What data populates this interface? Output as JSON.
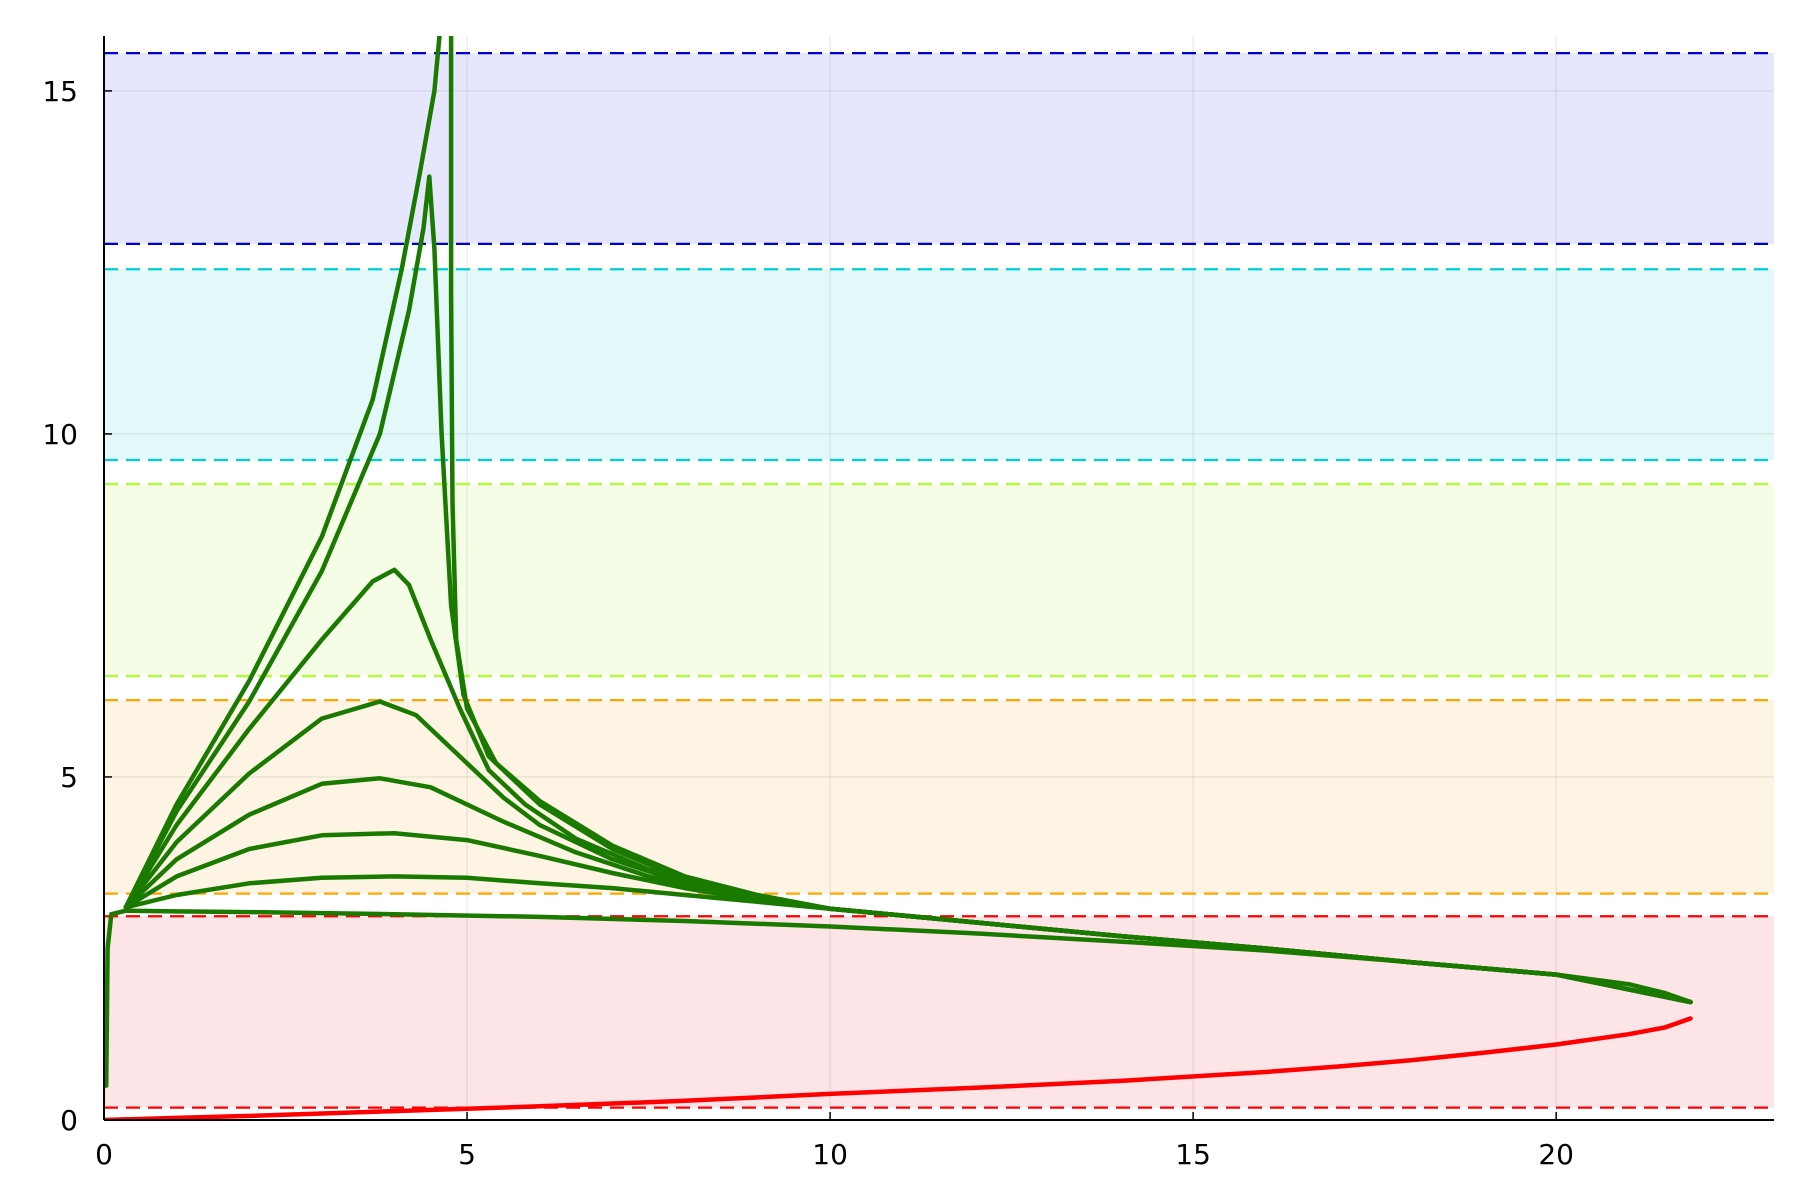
{
  "chart_data": {
    "type": "line",
    "title": "",
    "xlabel": "",
    "ylabel": "",
    "xlim": [
      0,
      23
    ],
    "ylim": [
      0,
      15.8
    ],
    "grid": true,
    "legend": "none",
    "x_ticks": [
      {
        "value": 0,
        "label": "0"
      },
      {
        "value": 5,
        "label": "5"
      },
      {
        "value": 10,
        "label": "10"
      },
      {
        "value": 15,
        "label": "15"
      },
      {
        "value": 20,
        "label": "20"
      }
    ],
    "y_ticks": [
      {
        "value": 0,
        "label": "0"
      },
      {
        "value": 5,
        "label": "5"
      },
      {
        "value": 10,
        "label": "10"
      },
      {
        "value": 15,
        "label": "15"
      }
    ],
    "bands": [
      {
        "y0": 0.18,
        "y1": 2.97,
        "fill": "#fde4e6",
        "line": "#ff0000"
      },
      {
        "y0": 3.3,
        "y1": 6.12,
        "fill": "#fdf4e4",
        "line": "#ffa500"
      },
      {
        "y0": 6.47,
        "y1": 9.27,
        "fill": "#f5fde7",
        "line": "#adff2f"
      },
      {
        "y0": 9.62,
        "y1": 12.4,
        "fill": "#e3f8f8",
        "line": "#00ced1"
      },
      {
        "y0": 12.77,
        "y1": 15.55,
        "fill": "#e6e6fe",
        "line": "#0000cd"
      }
    ],
    "series": [
      {
        "color": "#ff0000",
        "points": [
          [
            0,
            0
          ],
          [
            1,
            0.03
          ],
          [
            2,
            0.06
          ],
          [
            4,
            0.13
          ],
          [
            6,
            0.2
          ],
          [
            8,
            0.28
          ],
          [
            10,
            0.38
          ],
          [
            12,
            0.47
          ],
          [
            14,
            0.57
          ],
          [
            16,
            0.7
          ],
          [
            17,
            0.78
          ],
          [
            18,
            0.87
          ],
          [
            19,
            0.98
          ],
          [
            20,
            1.1
          ],
          [
            21,
            1.25
          ],
          [
            21.5,
            1.35
          ],
          [
            21.85,
            1.48
          ]
        ]
      },
      {
        "color": "#1a7a00",
        "points": [
          [
            21.85,
            1.72
          ],
          [
            21.5,
            1.85
          ],
          [
            21,
            1.98
          ],
          [
            20,
            2.12
          ],
          [
            18,
            2.3
          ],
          [
            16,
            2.47
          ],
          [
            14,
            2.6
          ],
          [
            12,
            2.72
          ],
          [
            10,
            2.82
          ],
          [
            8,
            2.9
          ],
          [
            6,
            2.96
          ],
          [
            4,
            3.0
          ],
          [
            2,
            3.03
          ],
          [
            1,
            3.04
          ],
          [
            0.3,
            3.05
          ],
          [
            0.1,
            3.0
          ],
          [
            0.05,
            2.5
          ],
          [
            0.03,
            0.5
          ]
        ]
      },
      {
        "color": "#1a7a00",
        "points": [
          [
            0.3,
            3.1
          ],
          [
            1,
            3.28
          ],
          [
            2,
            3.45
          ],
          [
            3,
            3.53
          ],
          [
            4,
            3.55
          ],
          [
            5,
            3.53
          ],
          [
            6,
            3.45
          ],
          [
            7,
            3.38
          ],
          [
            8,
            3.28
          ],
          [
            9,
            3.18
          ],
          [
            10,
            3.08
          ],
          [
            12,
            2.88
          ],
          [
            14,
            2.68
          ],
          [
            16,
            2.5
          ],
          [
            18,
            2.3
          ],
          [
            20,
            2.12
          ],
          [
            21.85,
            1.72
          ]
        ]
      },
      {
        "color": "#1a7a00",
        "points": [
          [
            0.3,
            3.1
          ],
          [
            1,
            3.55
          ],
          [
            2,
            3.95
          ],
          [
            3,
            4.15
          ],
          [
            4,
            4.18
          ],
          [
            5,
            4.08
          ],
          [
            6,
            3.85
          ],
          [
            7,
            3.6
          ],
          [
            8,
            3.38
          ],
          [
            9,
            3.2
          ],
          [
            10,
            3.08
          ],
          [
            12,
            2.88
          ],
          [
            14,
            2.68
          ],
          [
            16,
            2.5
          ],
          [
            18,
            2.3
          ],
          [
            20,
            2.12
          ],
          [
            21.85,
            1.72
          ]
        ]
      },
      {
        "color": "#1a7a00",
        "points": [
          [
            0.3,
            3.1
          ],
          [
            1,
            3.8
          ],
          [
            2,
            4.45
          ],
          [
            3,
            4.9
          ],
          [
            3.8,
            4.98
          ],
          [
            4.5,
            4.85
          ],
          [
            5.5,
            4.35
          ],
          [
            6.5,
            3.9
          ],
          [
            7.5,
            3.55
          ],
          [
            8.5,
            3.3
          ],
          [
            10,
            3.08
          ],
          [
            12,
            2.88
          ],
          [
            14,
            2.68
          ],
          [
            16,
            2.5
          ],
          [
            18,
            2.3
          ],
          [
            20,
            2.12
          ],
          [
            21.85,
            1.72
          ]
        ]
      },
      {
        "color": "#1a7a00",
        "points": [
          [
            0.3,
            3.1
          ],
          [
            1,
            4.05
          ],
          [
            2,
            5.05
          ],
          [
            3,
            5.85
          ],
          [
            3.8,
            6.1
          ],
          [
            4.3,
            5.9
          ],
          [
            5,
            5.2
          ],
          [
            5.5,
            4.7
          ],
          [
            6,
            4.3
          ],
          [
            7,
            3.8
          ],
          [
            8,
            3.45
          ],
          [
            9,
            3.22
          ],
          [
            10,
            3.08
          ],
          [
            12,
            2.88
          ],
          [
            14,
            2.68
          ],
          [
            16,
            2.5
          ],
          [
            18,
            2.3
          ],
          [
            20,
            2.12
          ],
          [
            21.85,
            1.72
          ]
        ]
      },
      {
        "color": "#1a7a00",
        "points": [
          [
            0.3,
            3.1
          ],
          [
            1,
            4.3
          ],
          [
            2,
            5.7
          ],
          [
            3,
            7.0
          ],
          [
            3.7,
            7.85
          ],
          [
            4.0,
            8.02
          ],
          [
            4.2,
            7.8
          ],
          [
            4.5,
            7.0
          ],
          [
            4.9,
            6.0
          ],
          [
            5.3,
            5.1
          ],
          [
            5.8,
            4.6
          ],
          [
            6.5,
            4.1
          ],
          [
            7.5,
            3.65
          ],
          [
            8.5,
            3.35
          ],
          [
            10,
            3.08
          ],
          [
            12,
            2.88
          ],
          [
            14,
            2.68
          ],
          [
            16,
            2.5
          ],
          [
            18,
            2.3
          ],
          [
            20,
            2.12
          ],
          [
            21.85,
            1.72
          ]
        ]
      },
      {
        "color": "#1a7a00",
        "points": [
          [
            0.3,
            3.1
          ],
          [
            1,
            4.5
          ],
          [
            2,
            6.1
          ],
          [
            3,
            8.0
          ],
          [
            3.8,
            10.0
          ],
          [
            4.2,
            11.8
          ],
          [
            4.4,
            13.0
          ],
          [
            4.48,
            13.75
          ],
          [
            4.55,
            12.7
          ],
          [
            4.65,
            10.0
          ],
          [
            4.78,
            7.5
          ],
          [
            4.95,
            6.2
          ],
          [
            5.3,
            5.3
          ],
          [
            6,
            4.6
          ],
          [
            7,
            3.95
          ],
          [
            8,
            3.5
          ],
          [
            9,
            3.25
          ],
          [
            10,
            3.08
          ],
          [
            12,
            2.88
          ],
          [
            14,
            2.68
          ],
          [
            16,
            2.5
          ],
          [
            18,
            2.3
          ],
          [
            20,
            2.12
          ],
          [
            21.85,
            1.72
          ]
        ]
      },
      {
        "color": "#1a7a00",
        "points": [
          [
            0.3,
            3.1
          ],
          [
            1,
            4.6
          ],
          [
            2,
            6.4
          ],
          [
            3,
            8.5
          ],
          [
            3.7,
            10.5
          ],
          [
            4.1,
            12.4
          ],
          [
            4.35,
            13.8
          ],
          [
            4.55,
            15.0
          ],
          [
            4.62,
            15.8
          ]
        ]
      },
      {
        "color": "#1a7a00",
        "points": [
          [
            4.78,
            15.8
          ],
          [
            4.78,
            12.0
          ],
          [
            4.8,
            9.0
          ],
          [
            4.85,
            7.0
          ],
          [
            5.0,
            6.0
          ],
          [
            5.4,
            5.2
          ],
          [
            6,
            4.65
          ],
          [
            7,
            4.0
          ],
          [
            8,
            3.55
          ],
          [
            9,
            3.28
          ],
          [
            10,
            3.08
          ],
          [
            12,
            2.88
          ],
          [
            14,
            2.68
          ],
          [
            16,
            2.5
          ],
          [
            18,
            2.3
          ],
          [
            20,
            2.12
          ],
          [
            21.85,
            1.72
          ]
        ]
      }
    ]
  }
}
